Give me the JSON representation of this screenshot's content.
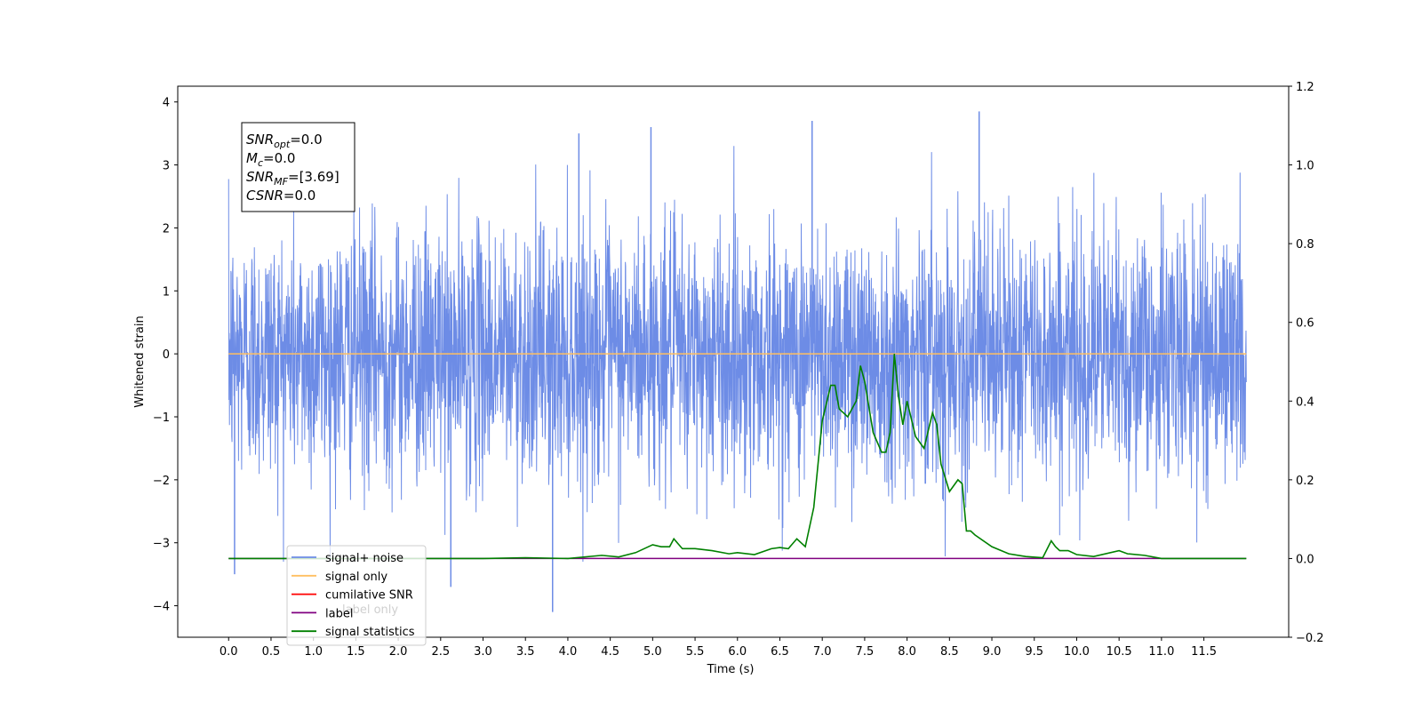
{
  "chart_data": {
    "type": "line",
    "xlabel": "Time (s)",
    "ylabel": "Whitened strain",
    "ylabel_right": "",
    "xlim": [
      -0.6,
      12.5
    ],
    "ylim": [
      -4.5,
      4.25
    ],
    "ylim_right": [
      -0.2,
      1.2
    ],
    "x_ticks": [
      "0.0",
      "0.5",
      "1.0",
      "1.5",
      "2.0",
      "2.5",
      "3.0",
      "3.5",
      "4.0",
      "4.5",
      "5.0",
      "5.5",
      "6.0",
      "6.5",
      "7.0",
      "7.5",
      "8.0",
      "8.5",
      "9.0",
      "9.5",
      "10.0",
      "10.5",
      "11.0",
      "11.5"
    ],
    "y_ticks": [
      "4",
      "3",
      "2",
      "1",
      "0",
      "−1",
      "−2",
      "−3",
      "−4"
    ],
    "y_ticks_right": [
      "1.2",
      "1.0",
      "0.8",
      "0.6",
      "0.4",
      "0.2",
      "0.0",
      "−0.2"
    ],
    "annotation": [
      {
        "base": "SNR",
        "sub": "opt",
        "rest": "=0.0"
      },
      {
        "base": "M",
        "sub": "c",
        "rest": "=0.0"
      },
      {
        "base": "SNR",
        "sub": "MF",
        "rest": "=[3.69]"
      },
      {
        "base": "CSNR",
        "sub": "",
        "rest": "=0.0"
      }
    ],
    "legend": {
      "location": "lower-left",
      "entries": [
        {
          "label": "signal+ noise",
          "color": "#6d8ce6"
        },
        {
          "label": "signal only",
          "color": "#ffbf60"
        },
        {
          "label": "cumilative SNR",
          "color": "#ff0000"
        },
        {
          "label": "label",
          "color": "#800080"
        },
        {
          "label": "signal statistics",
          "color": "#008000"
        }
      ],
      "overlapped_text": "label only"
    },
    "series": [
      {
        "name": "signal+ noise",
        "axis": "left",
        "color": "#6d8ce6",
        "x_range": [
          0.0,
          12.0
        ],
        "approx_envelope": [
          -2.9,
          2.9
        ],
        "notable_peaks": [
          {
            "x": 0.07,
            "y": -3.5
          },
          {
            "x": 3.82,
            "y": -4.1
          },
          {
            "x": 2.62,
            "y": -3.7
          },
          {
            "x": 6.88,
            "y": 3.7
          },
          {
            "x": 8.85,
            "y": 3.85
          },
          {
            "x": 4.13,
            "y": 3.5
          },
          {
            "x": 4.98,
            "y": 3.6
          }
        ]
      },
      {
        "name": "signal only",
        "axis": "left",
        "color": "#ffbf60",
        "x": [
          0.0,
          12.0
        ],
        "y": [
          0.0,
          0.0
        ]
      },
      {
        "name": "label",
        "axis": "right",
        "color": "#800080",
        "x": [
          0.0,
          12.0
        ],
        "y": [
          0.0,
          0.0
        ]
      },
      {
        "name": "signal statistics",
        "axis": "right",
        "color": "#008000",
        "x": [
          0.0,
          1.0,
          2.0,
          3.0,
          3.5,
          4.0,
          4.4,
          4.6,
          4.8,
          5.0,
          5.1,
          5.2,
          5.25,
          5.35,
          5.5,
          5.7,
          5.9,
          6.0,
          6.2,
          6.4,
          6.5,
          6.6,
          6.7,
          6.8,
          6.9,
          7.0,
          7.1,
          7.15,
          7.2,
          7.3,
          7.4,
          7.45,
          7.5,
          7.6,
          7.7,
          7.75,
          7.8,
          7.85,
          7.9,
          7.95,
          8.0,
          8.1,
          8.2,
          8.3,
          8.35,
          8.4,
          8.5,
          8.6,
          8.65,
          8.7,
          8.75,
          8.8,
          9.0,
          9.2,
          9.4,
          9.6,
          9.7,
          9.75,
          9.8,
          9.9,
          10.0,
          10.2,
          10.5,
          10.6,
          10.8,
          11.0,
          11.5,
          12.0
        ],
        "y": [
          0.0,
          0.0,
          0.0,
          0.0,
          0.002,
          0.0,
          0.008,
          0.004,
          0.015,
          0.035,
          0.03,
          0.03,
          0.05,
          0.025,
          0.025,
          0.02,
          0.012,
          0.015,
          0.01,
          0.025,
          0.028,
          0.025,
          0.05,
          0.03,
          0.13,
          0.35,
          0.44,
          0.44,
          0.38,
          0.36,
          0.4,
          0.49,
          0.45,
          0.32,
          0.27,
          0.27,
          0.32,
          0.52,
          0.41,
          0.34,
          0.4,
          0.31,
          0.28,
          0.37,
          0.34,
          0.24,
          0.17,
          0.2,
          0.19,
          0.07,
          0.07,
          0.06,
          0.03,
          0.012,
          0.005,
          0.002,
          0.045,
          0.03,
          0.02,
          0.02,
          0.01,
          0.005,
          0.02,
          0.012,
          0.008,
          0.0,
          0.0,
          0.0
        ]
      }
    ]
  }
}
